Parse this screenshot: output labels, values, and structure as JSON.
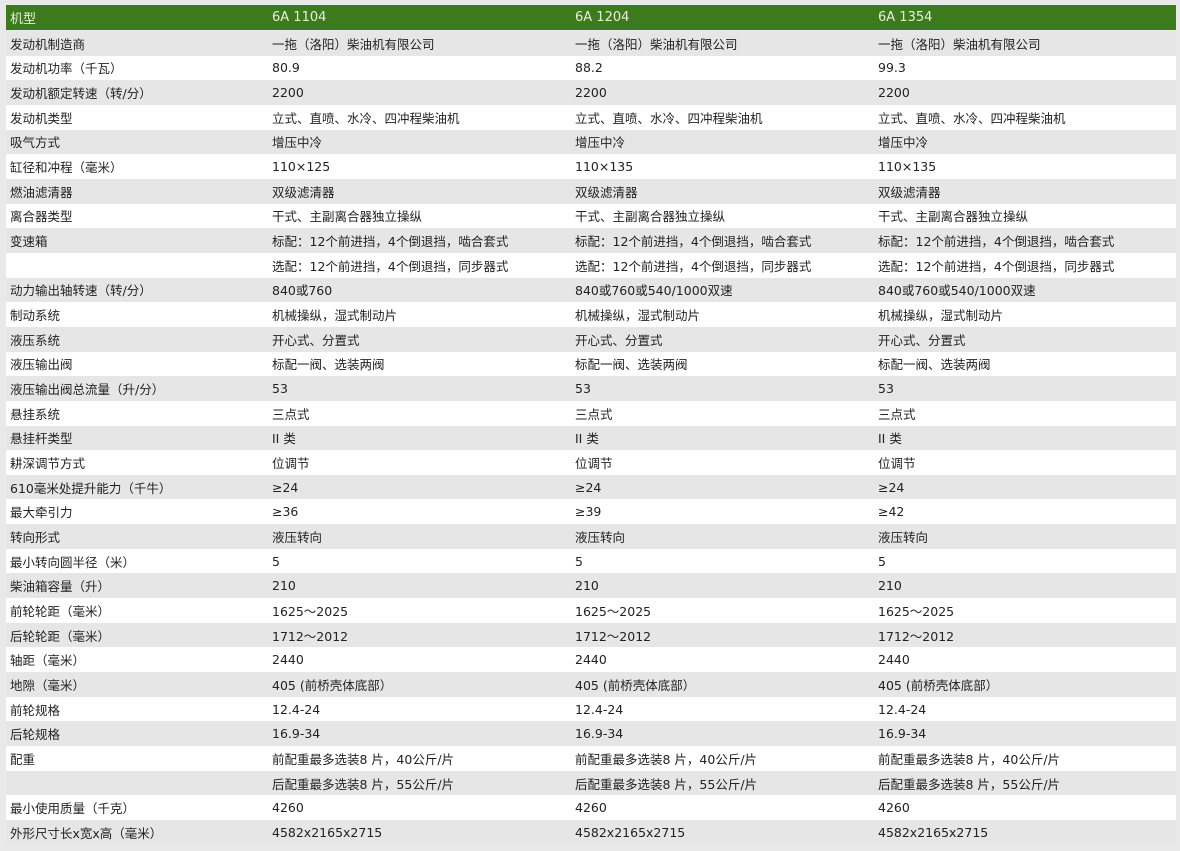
{
  "header": [
    "机型",
    "6A 1104",
    "6A 1204",
    "6A 1354"
  ],
  "colors": {
    "header_bg": "#3d7a1e",
    "header_text": "#e6f0d6",
    "row_alt": "#e6e6e6",
    "row": "#ffffff"
  },
  "rows": [
    [
      "发动机制造商",
      "一拖（洛阳）柴油机有限公司",
      "一拖（洛阳）柴油机有限公司",
      "一拖（洛阳）柴油机有限公司"
    ],
    [
      "发动机功率（千瓦）",
      "80.9",
      "88.2",
      "99.3"
    ],
    [
      "发动机额定转速（转/分）",
      "2200",
      "2200",
      "2200"
    ],
    [
      "发动机类型",
      "立式、直喷、水冷、四冲程柴油机",
      "立式、直喷、水冷、四冲程柴油机",
      "立式、直喷、水冷、四冲程柴油机"
    ],
    [
      "吸气方式",
      "增压中冷",
      "增压中冷",
      "增压中冷"
    ],
    [
      "缸径和冲程（毫米）",
      "110×125",
      "110×135",
      "110×135"
    ],
    [
      "燃油滤清器",
      "双级滤清器",
      "双级滤清器",
      "双级滤清器"
    ],
    [
      "离合器类型",
      "干式、主副离合器独立操纵",
      "干式、主副离合器独立操纵",
      "干式、主副离合器独立操纵"
    ],
    [
      "变速箱",
      "标配：12个前进挡，4个倒退挡，啮合套式",
      "标配：12个前进挡，4个倒退挡，啮合套式",
      "标配：12个前进挡，4个倒退挡，啮合套式"
    ],
    [
      "",
      "选配：12个前进挡，4个倒退挡，同步器式",
      "选配：12个前进挡，4个倒退挡，同步器式",
      "选配：12个前进挡，4个倒退挡，同步器式"
    ],
    [
      "动力输出轴转速（转/分）",
      "840或760",
      "840或760或540/1000双速",
      "840或760或540/1000双速"
    ],
    [
      "制动系统",
      "机械操纵，湿式制动片",
      "机械操纵，湿式制动片",
      "机械操纵，湿式制动片"
    ],
    [
      "液压系统",
      "开心式、分置式",
      "开心式、分置式",
      "开心式、分置式"
    ],
    [
      "液压输出阀",
      "标配一阀、选装两阀",
      "标配一阀、选装两阀",
      "标配一阀、选装两阀"
    ],
    [
      "液压输出阀总流量（升/分）",
      "53",
      "53",
      "53"
    ],
    [
      "悬挂系统",
      "三点式",
      "三点式",
      "三点式"
    ],
    [
      "悬挂杆类型",
      "II 类",
      "II 类",
      "II 类"
    ],
    [
      "耕深调节方式",
      "位调节",
      "位调节",
      "位调节"
    ],
    [
      "610毫米处提升能力（千牛）",
      "≥24",
      "≥24",
      "≥24"
    ],
    [
      "最大牵引力",
      "≥36",
      "≥39",
      "≥42"
    ],
    [
      "转向形式",
      "液压转向",
      "液压转向",
      "液压转向"
    ],
    [
      "最小转向圆半径（米）",
      "5",
      "5",
      "5"
    ],
    [
      "柴油箱容量（升）",
      "210",
      "210",
      "210"
    ],
    [
      "前轮轮距（毫米）",
      "1625～2025",
      "1625～2025",
      "1625～2025"
    ],
    [
      "后轮轮距（毫米）",
      "1712～2012",
      "1712～2012",
      "1712～2012"
    ],
    [
      "轴距（毫米）",
      "2440",
      "2440",
      "2440"
    ],
    [
      "地隙（毫米）",
      "405 (前桥壳体底部）",
      "405 (前桥壳体底部）",
      "405 (前桥壳体底部）"
    ],
    [
      "前轮规格",
      "12.4-24",
      "12.4-24",
      "12.4-24"
    ],
    [
      "后轮规格",
      "16.9-34",
      "16.9-34",
      "16.9-34"
    ],
    [
      "配重",
      "前配重最多选装8 片，40公斤/片",
      "前配重最多选装8 片，40公斤/片",
      "前配重最多选装8 片，40公斤/片"
    ],
    [
      "",
      "后配重最多选装8 片，55公斤/片",
      "后配重最多选装8 片，55公斤/片",
      "后配重最多选装8 片，55公斤/片"
    ],
    [
      "最小使用质量（千克）",
      "4260",
      "4260",
      "4260"
    ],
    [
      "外形尺寸长x宽x高（毫米）",
      "4582x2165x2715",
      "4582x2165x2715",
      "4582x2165x2715"
    ]
  ]
}
